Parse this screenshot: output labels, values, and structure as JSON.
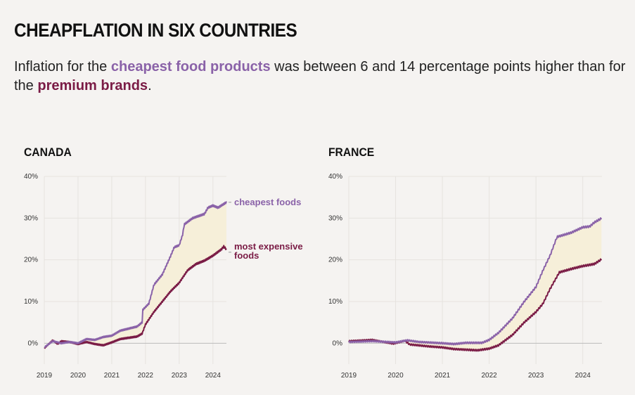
{
  "header": {
    "title": "CHEAPFLATION IN SIX COUNTRIES",
    "sub_pre": "Inflation for the ",
    "sub_cheap": "cheapest food products",
    "sub_mid": " was between 6 and 14 percentage points higher than for the ",
    "sub_prem": "premium brands",
    "sub_end": "."
  },
  "colors": {
    "cheap": "#8a62a8",
    "expensive": "#7a1b45",
    "band": "#f6efd9",
    "grid": "#e6e3df",
    "zero": "#bbbbbb"
  },
  "chart_data": [
    {
      "type": "line",
      "title": "CANADA",
      "xlabel": "",
      "ylabel": "",
      "xlim": [
        2019,
        2024.4
      ],
      "ylim": [
        -5,
        40
      ],
      "xticks": [
        2019,
        2020,
        2021,
        2022,
        2023,
        2024
      ],
      "yticks": [
        {
          "v": 0,
          "label": "0%"
        },
        {
          "v": 10,
          "label": "10%"
        },
        {
          "v": 20,
          "label": "20%"
        },
        {
          "v": 30,
          "label": "30%"
        },
        {
          "v": 40,
          "label": "40%"
        }
      ],
      "annotations": {
        "cheap": [
          "cheapest foods"
        ],
        "expensive": [
          "most expensive",
          "foods"
        ]
      },
      "series": [
        {
          "name": "cheapest foods",
          "key": "cheap",
          "x": [
            2019,
            2019.25,
            2019.5,
            2019.75,
            2020,
            2020.25,
            2020.5,
            2020.75,
            2021,
            2021.25,
            2021.5,
            2021.75,
            2021.9,
            2021.92,
            2022.1,
            2022.25,
            2022.5,
            2022.75,
            2022.85,
            2023.0,
            2023.1,
            2023.15,
            2023.4,
            2023.75,
            2023.85,
            2024,
            2024.15,
            2024.4
          ],
          "y": [
            -1,
            0.5,
            0,
            0.3,
            0,
            1,
            0.8,
            1.5,
            1.8,
            3,
            3.5,
            4,
            5,
            8,
            9.5,
            14,
            16.5,
            21,
            23,
            23.5,
            26,
            28.5,
            30,
            31,
            32.5,
            33,
            32.5,
            33.8
          ]
        },
        {
          "name": "most expensive foods",
          "key": "expensive",
          "x": [
            2019,
            2019.25,
            2019.4,
            2019.5,
            2019.75,
            2020,
            2020.25,
            2020.5,
            2020.75,
            2021,
            2021.25,
            2021.5,
            2021.75,
            2021.9,
            2022,
            2022.25,
            2022.5,
            2022.75,
            2023,
            2023.25,
            2023.5,
            2023.75,
            2024,
            2024.25,
            2024.32,
            2024.4
          ],
          "y": [
            -1.2,
            0.7,
            -0.2,
            0.5,
            0.3,
            -0.2,
            0.3,
            -0.2,
            -0.5,
            0.2,
            1,
            1.3,
            1.6,
            2.3,
            4.5,
            7.5,
            10,
            12.5,
            14.5,
            17.5,
            19,
            19.8,
            21,
            22.5,
            23.2,
            22.5
          ]
        }
      ]
    },
    {
      "type": "line",
      "title": "FRANCE",
      "xlabel": "",
      "ylabel": "",
      "xlim": [
        2019,
        2024.41
      ],
      "ylim": [
        -5,
        40
      ],
      "xticks": [
        2019,
        2020,
        2021,
        2022,
        2023,
        2024
      ],
      "yticks": [
        {
          "v": 0,
          "label": "0%"
        },
        {
          "v": 10,
          "label": "10%"
        },
        {
          "v": 20,
          "label": "20%"
        },
        {
          "v": 30,
          "label": "30%"
        },
        {
          "v": 40,
          "label": "40%"
        }
      ],
      "series": [
        {
          "name": "cheapest foods",
          "key": "cheap",
          "x": [
            2019,
            2019.5,
            2020,
            2020.25,
            2020.5,
            2021,
            2021.25,
            2021.5,
            2021.85,
            2022,
            2022.2,
            2022.5,
            2022.75,
            2023,
            2023.15,
            2023.3,
            2023.45,
            2023.75,
            2024,
            2024.15,
            2024.25,
            2024.41
          ],
          "y": [
            0.3,
            0.5,
            0.2,
            0.7,
            0.3,
            0,
            -0.2,
            0.1,
            0.1,
            0.8,
            2.5,
            6,
            10,
            13.5,
            17.5,
            21,
            25.5,
            26.5,
            27.8,
            28,
            29,
            30
          ]
        },
        {
          "name": "most expensive foods",
          "key": "expensive",
          "x": [
            2019,
            2019.5,
            2019.95,
            2020.2,
            2020.3,
            2020.75,
            2021,
            2021.25,
            2021.75,
            2022,
            2022.2,
            2022.5,
            2022.75,
            2023,
            2023.15,
            2023.3,
            2023.5,
            2023.75,
            2024,
            2024.25,
            2024.41
          ],
          "y": [
            0.5,
            0.8,
            -0.1,
            0.6,
            -0.3,
            -0.8,
            -1,
            -1.4,
            -1.7,
            -1.3,
            -0.5,
            2,
            5,
            7.5,
            9.5,
            13,
            17,
            17.8,
            18.5,
            19,
            20.2
          ]
        }
      ]
    }
  ]
}
